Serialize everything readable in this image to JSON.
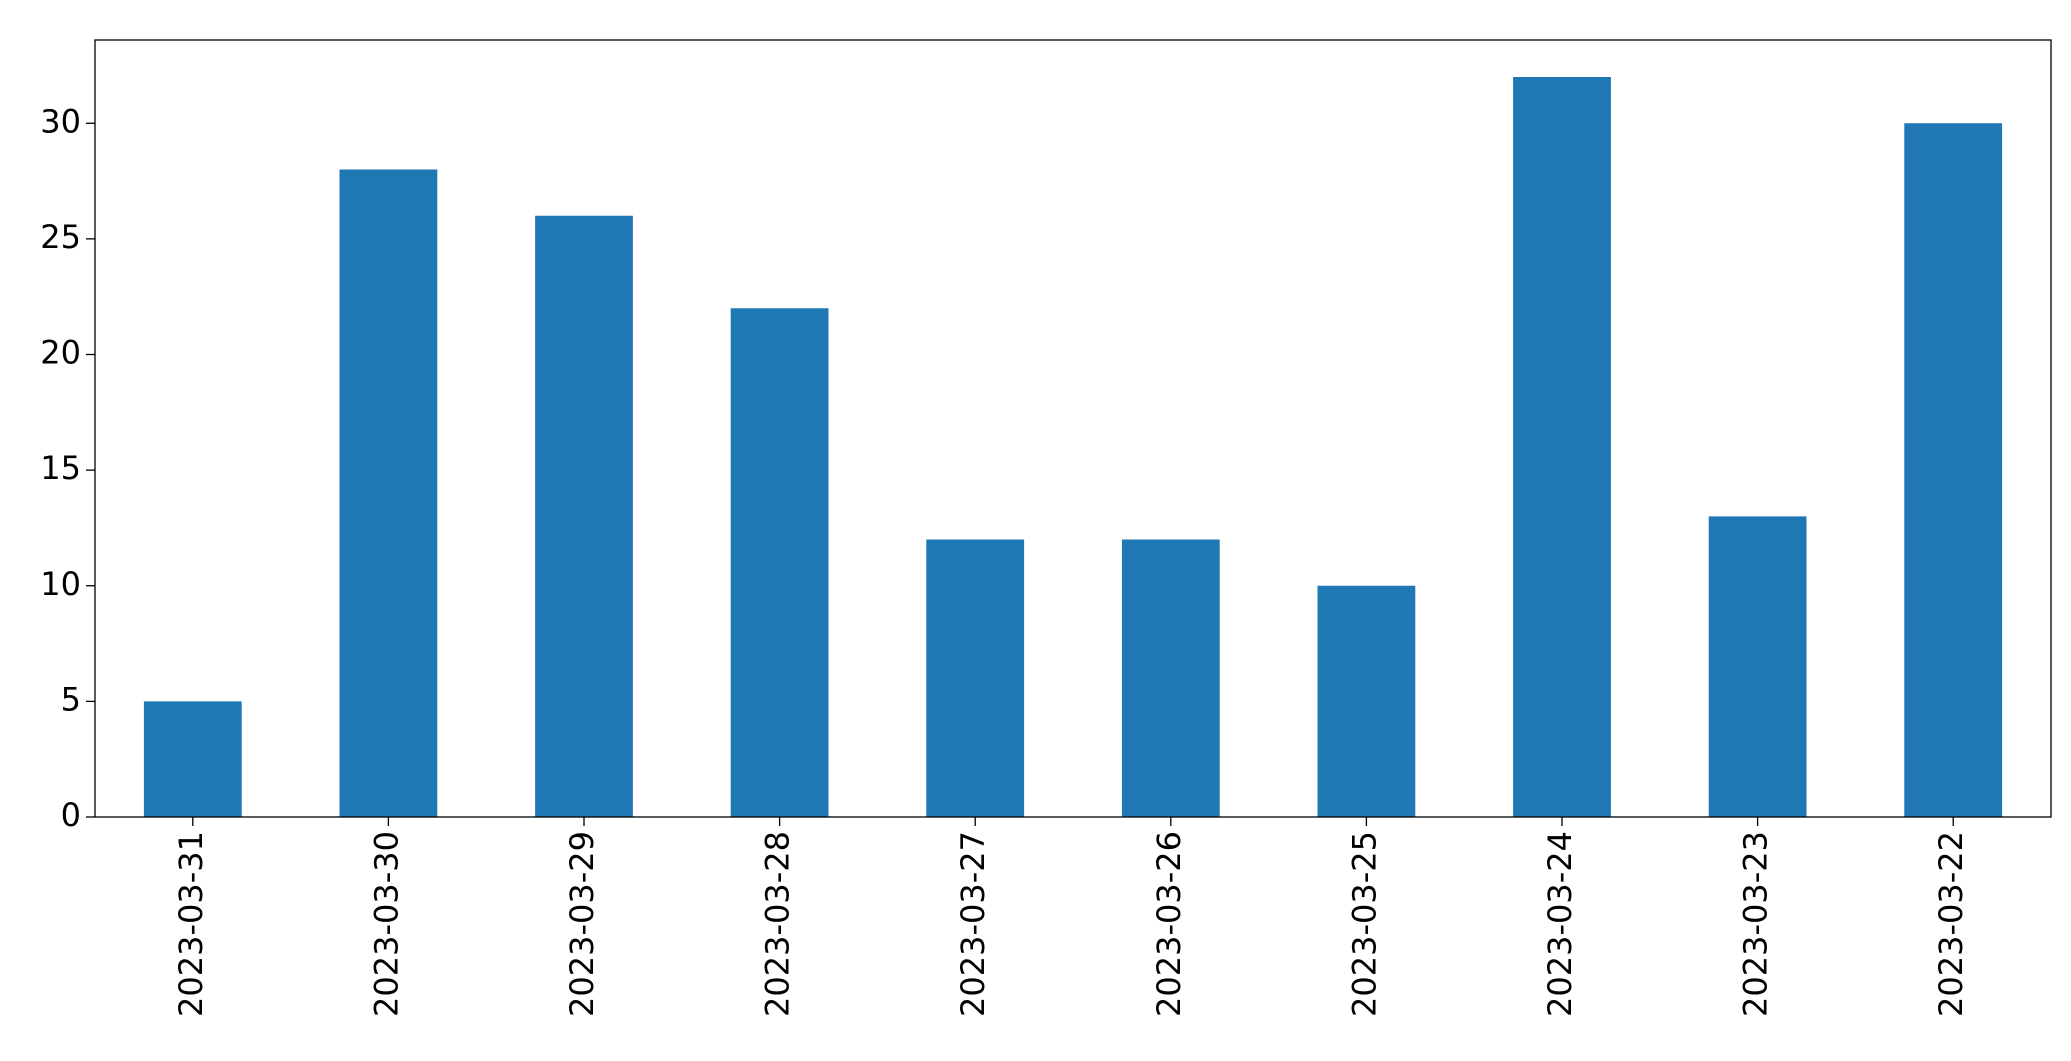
{
  "chart_data": {
    "type": "bar",
    "categories": [
      "2023-03-31",
      "2023-03-30",
      "2023-03-29",
      "2023-03-28",
      "2023-03-27",
      "2023-03-26",
      "2023-03-25",
      "2023-03-24",
      "2023-03-23",
      "2023-03-22"
    ],
    "values": [
      5,
      28,
      26,
      22,
      12,
      12,
      10,
      32,
      13,
      30
    ],
    "color": "#1f77b4",
    "ylim": [
      0,
      33.6
    ],
    "yticks": [
      0,
      5,
      10,
      15,
      20,
      25,
      30
    ],
    "grid": false
  }
}
